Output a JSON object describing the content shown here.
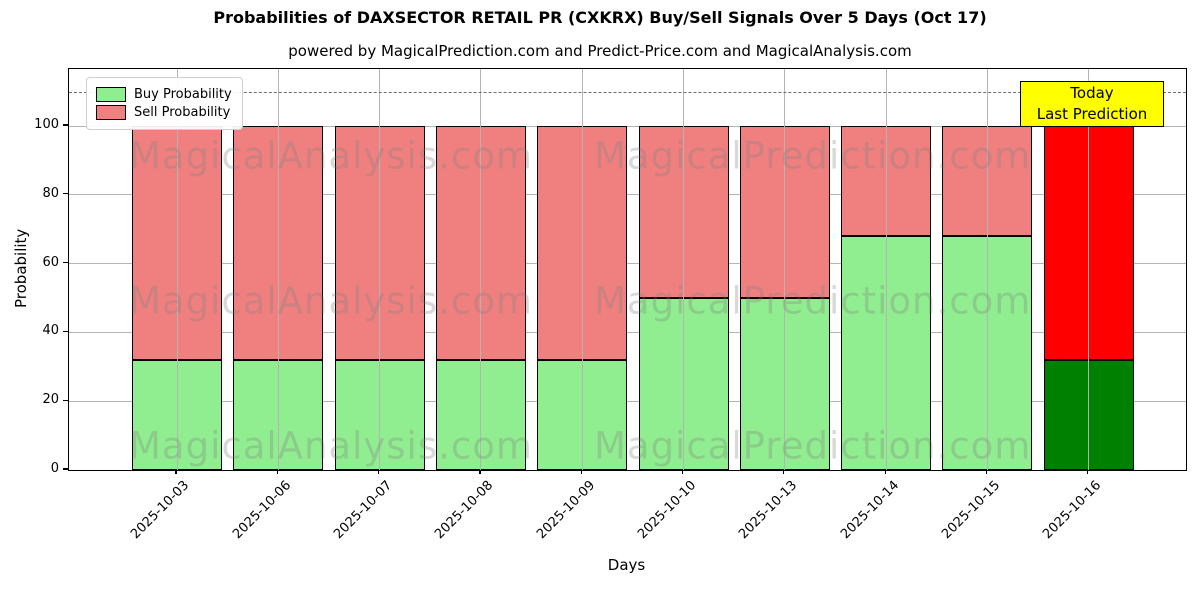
{
  "chart_data": {
    "type": "bar",
    "stacked": true,
    "title": "Probabilities of DAXSECTOR RETAIL PR (CXKRX) Buy/Sell Signals Over 5 Days (Oct 17)",
    "subtitle": "powered by MagicalPrediction.com and Predict-Price.com and MagicalAnalysis.com",
    "xlabel": "Days",
    "ylabel": "Probability",
    "categories": [
      "2025-10-03",
      "2025-10-06",
      "2025-10-07",
      "2025-10-08",
      "2025-10-09",
      "2025-10-10",
      "2025-10-13",
      "2025-10-14",
      "2025-10-15",
      "2025-10-16"
    ],
    "series": [
      {
        "name": "Buy Probability",
        "color": "#90ee90",
        "values": [
          32,
          32,
          32,
          32,
          32,
          50,
          50,
          68,
          68,
          32
        ]
      },
      {
        "name": "Sell Probability",
        "color": "#f08080",
        "values": [
          68,
          68,
          68,
          68,
          68,
          50,
          50,
          32,
          32,
          68
        ]
      }
    ],
    "today_bar": {
      "category": "2025-10-16",
      "index": 9,
      "buy_color": "#008000",
      "sell_color": "#ff0000"
    },
    "annotation": {
      "line1": "Today",
      "line2": "Last Prediction",
      "bg_color": "#ffff00"
    },
    "yticks": [
      0,
      20,
      40,
      60,
      80,
      100
    ],
    "ylim": [
      0,
      116.5
    ],
    "reference_line_y": 110,
    "grid": true,
    "legend_position": "upper left",
    "watermark_left": "MagicalAnalysis.com",
    "watermark_right": "MagicalPrediction.com"
  }
}
